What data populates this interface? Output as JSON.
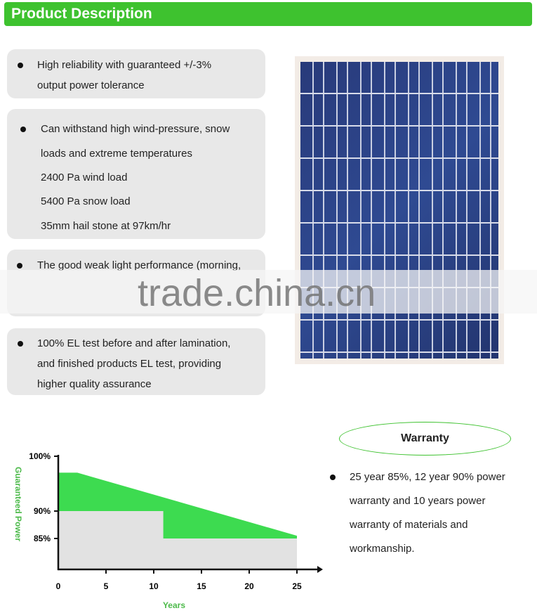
{
  "header": {
    "title": "Product Description"
  },
  "features": [
    {
      "lines": [
        "High reliability with guaranteed +/-3%",
        "output power tolerance"
      ]
    },
    {
      "lines": [
        "Can withstand high wind-pressure, snow",
        "loads and extreme temperatures",
        "2400 Pa wind load",
        "5400 Pa snow load",
        "35mm hail stone at 97km/hr"
      ]
    },
    {
      "lines": [
        "The good weak light performance (morning,"
      ]
    },
    {
      "lines": [
        "100% EL test before and after lamination,",
        "and finished products EL test, providing",
        "higher quality assurance"
      ]
    }
  ],
  "watermark": "trade.china.cn",
  "warranty": {
    "title": "Warranty",
    "lines": [
      "25 year 85%, 12 year 90% power",
      "warranty and 10 years power",
      "warranty of materials and",
      "workmanship."
    ]
  },
  "colors": {
    "accent": "#3ec22f",
    "box": "#e8e8e8",
    "panel": "#2f4a92"
  },
  "chart_data": {
    "type": "area",
    "xlabel": "Years",
    "ylabel": "Guaranteed Power",
    "x_ticks": [
      "0",
      "5",
      "10",
      "15",
      "20",
      "25"
    ],
    "y_ticks": [
      "100%",
      "90%",
      "85%"
    ],
    "xlim": [
      0,
      25
    ],
    "ylim": [
      80,
      100
    ],
    "series": [
      {
        "x": [
          0,
          2,
          25
        ],
        "y": [
          97,
          97,
          85.5
        ],
        "color": "#3ddb50"
      },
      {
        "x": [
          0,
          11,
          11,
          25
        ],
        "y": [
          90,
          90,
          85,
          85
        ],
        "color": "#e2e2e2"
      }
    ]
  }
}
